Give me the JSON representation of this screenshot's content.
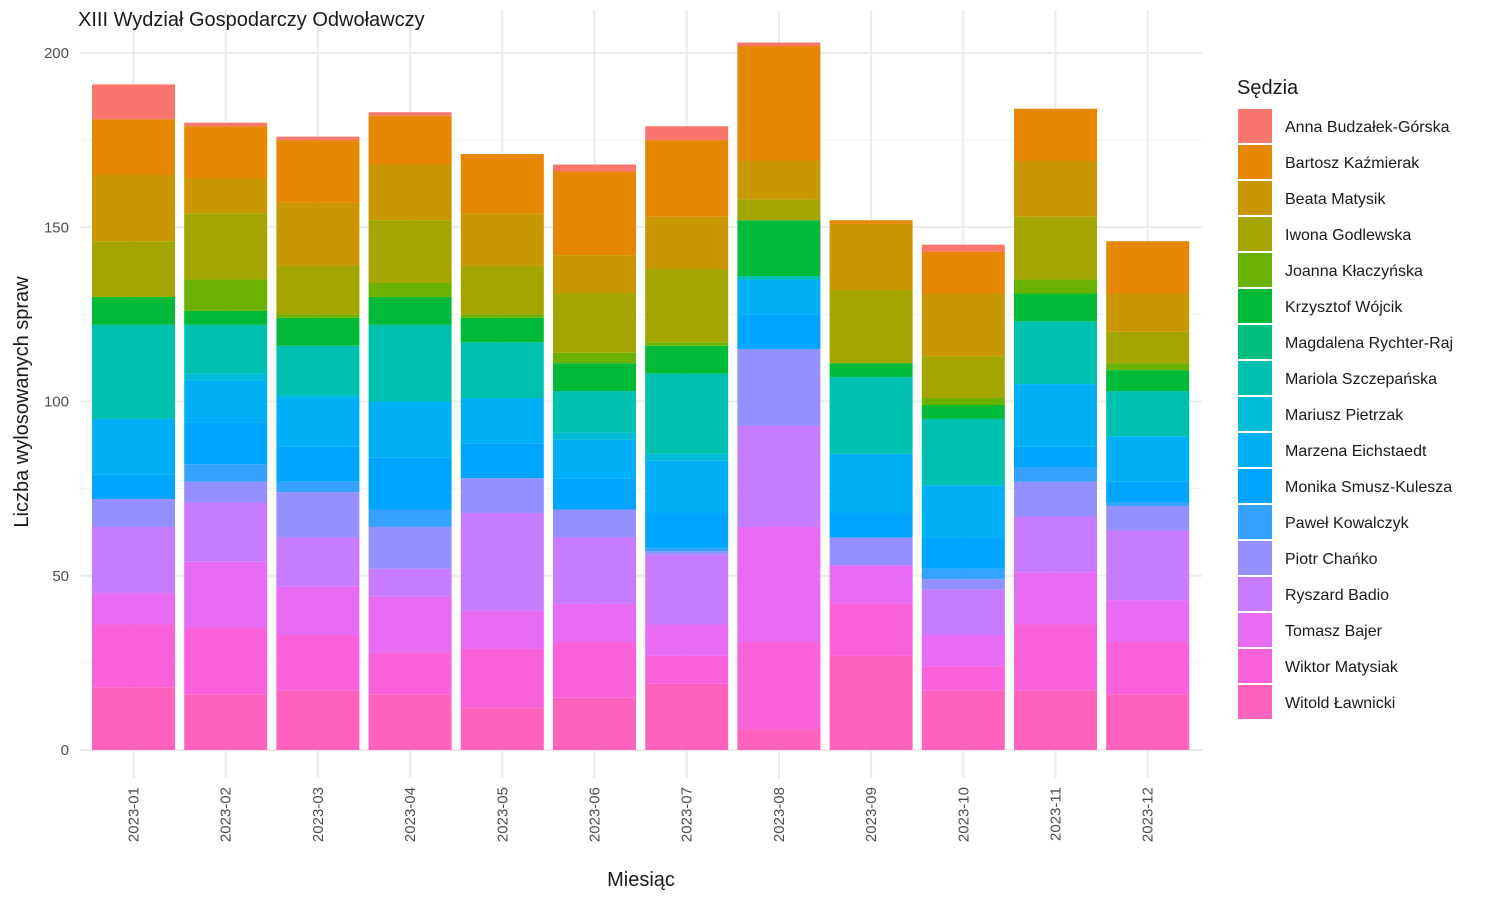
{
  "chart_data": {
    "type": "bar",
    "stacked": true,
    "title": "XIII Wydział Gospodarczy Odwoławczy",
    "xlabel": "Miesiąc",
    "ylabel": "Liczba wylosowanych spraw",
    "ylim": [
      0,
      205
    ],
    "yticks": [
      0,
      50,
      100,
      150,
      200
    ],
    "grid": true,
    "legend_title": "Sędzia",
    "legend_position": "right",
    "categories": [
      "2023-01",
      "2023-02",
      "2023-03",
      "2023-04",
      "2023-05",
      "2023-06",
      "2023-07",
      "2023-08",
      "2023-09",
      "2023-10",
      "2023-11",
      "2023-12"
    ],
    "series": [
      {
        "name": "Anna Budzałek-Górska",
        "color": "#F8766D",
        "values": [
          10,
          1,
          1,
          1,
          0,
          2,
          4,
          1,
          0,
          2,
          0,
          0
        ]
      },
      {
        "name": "Bartosz Kaźmierak",
        "color": "#E58700",
        "values": [
          16,
          15,
          18,
          14,
          17,
          24,
          22,
          33,
          1,
          12,
          15,
          15
        ]
      },
      {
        "name": "Beata Matysik",
        "color": "#C99800",
        "values": [
          19,
          10,
          18,
          16,
          15,
          11,
          15,
          11,
          19,
          18,
          16,
          11
        ]
      },
      {
        "name": "Iwona Godlewska",
        "color": "#A3A500",
        "values": [
          16,
          19,
          14,
          18,
          14,
          17,
          21,
          6,
          21,
          12,
          18,
          9
        ]
      },
      {
        "name": "Joanna Kłaczyńska",
        "color": "#6BB100",
        "values": [
          0,
          9,
          1,
          4,
          1,
          3,
          1,
          0,
          0,
          2,
          4,
          2
        ]
      },
      {
        "name": "Krzysztof Wójcik",
        "color": "#00BA38",
        "values": [
          8,
          4,
          8,
          8,
          7,
          8,
          8,
          16,
          4,
          4,
          8,
          6
        ]
      },
      {
        "name": "Magdalena Rychter-Raj",
        "color": "#00BF7D",
        "values": [
          0,
          0,
          0,
          0,
          0,
          0,
          0,
          0,
          0,
          0,
          0,
          0
        ]
      },
      {
        "name": "Mariola Szczepańska",
        "color": "#00C0AF",
        "values": [
          27,
          14,
          14,
          22,
          16,
          12,
          23,
          1,
          22,
          19,
          18,
          13
        ]
      },
      {
        "name": "Mariusz Pietrzak",
        "color": "#00BCD8",
        "values": [
          0,
          2,
          1,
          0,
          0,
          2,
          2,
          0,
          0,
          0,
          0,
          0
        ]
      },
      {
        "name": "Marzena Eichstaedt",
        "color": "#00B0F6",
        "values": [
          16,
          12,
          14,
          16,
          13,
          11,
          15,
          10,
          17,
          15,
          18,
          13
        ]
      },
      {
        "name": "Monika Smusz-Kulesza",
        "color": "#00A5FF",
        "values": [
          7,
          12,
          10,
          15,
          10,
          9,
          10,
          10,
          7,
          9,
          6,
          6
        ]
      },
      {
        "name": "Paweł Kowalczyk",
        "color": "#35A2FF",
        "values": [
          0,
          5,
          3,
          5,
          0,
          0,
          1,
          0,
          0,
          3,
          4,
          1
        ]
      },
      {
        "name": "Piotr Chańko",
        "color": "#9590FF",
        "values": [
          8,
          6,
          13,
          12,
          10,
          8,
          1,
          22,
          8,
          3,
          10,
          7
        ]
      },
      {
        "name": "Ryszard Badio",
        "color": "#C77CFF",
        "values": [
          19,
          17,
          14,
          8,
          28,
          19,
          20,
          29,
          0,
          13,
          16,
          20
        ]
      },
      {
        "name": "Tomasz Bajer",
        "color": "#E76BF3",
        "values": [
          9,
          19,
          14,
          16,
          11,
          11,
          9,
          33,
          11,
          9,
          15,
          12
        ]
      },
      {
        "name": "Wiktor Matysiak",
        "color": "#FA62DB",
        "values": [
          18,
          19,
          16,
          12,
          17,
          16,
          8,
          25,
          15,
          7,
          19,
          15
        ]
      },
      {
        "name": "Witold Ławnicki",
        "color": "#FF62BC",
        "values": [
          18,
          16,
          17,
          16,
          12,
          15,
          19,
          6,
          27,
          17,
          17,
          16
        ]
      }
    ]
  }
}
